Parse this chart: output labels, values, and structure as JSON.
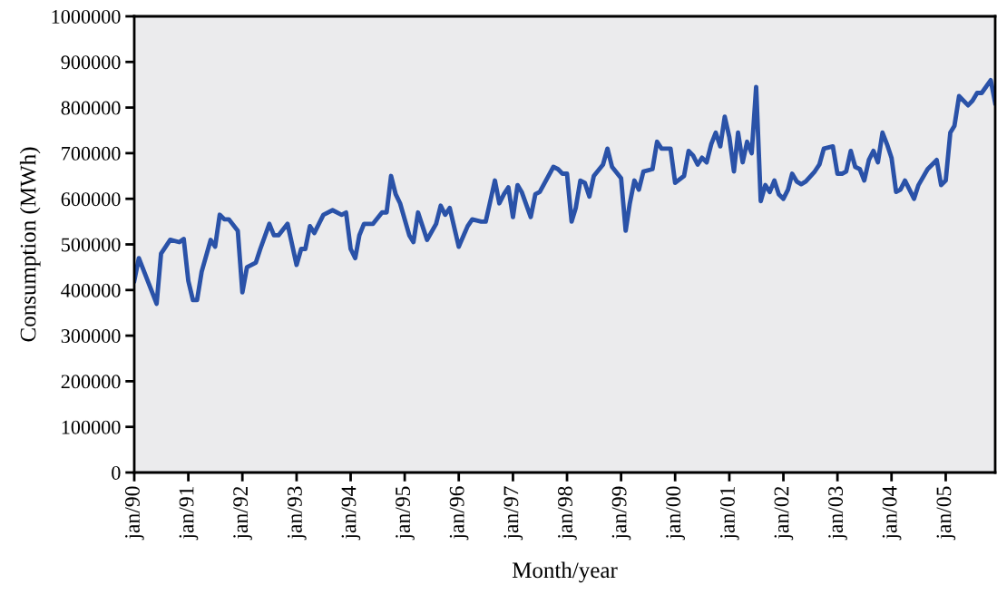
{
  "chart_data": {
    "type": "line",
    "xlabel": "Month/year",
    "ylabel": "Consumption (MWh)",
    "x": [
      "1990-01",
      "1990-02",
      "1990-06",
      "1990-07",
      "1990-09",
      "1990-11",
      "1990-12",
      "1991-01",
      "1991-02",
      "1991-03",
      "1991-04",
      "1991-06",
      "1991-07",
      "1991-08",
      "1991-09",
      "1991-10",
      "1991-12",
      "1992-01",
      "1992-02",
      "1992-04",
      "1992-05",
      "1992-07",
      "1992-08",
      "1992-09",
      "1992-11",
      "1993-01",
      "1993-02",
      "1993-03",
      "1993-04",
      "1993-05",
      "1993-07",
      "1993-09",
      "1993-11",
      "1993-12",
      "1994-01",
      "1994-02",
      "1994-03",
      "1994-04",
      "1994-06",
      "1994-08",
      "1994-09",
      "1994-10",
      "1994-11",
      "1994-12",
      "1995-02",
      "1995-03",
      "1995-04",
      "1995-06",
      "1995-08",
      "1995-09",
      "1995-10",
      "1995-11",
      "1996-01",
      "1996-03",
      "1996-04",
      "1996-06",
      "1996-07",
      "1996-08",
      "1996-09",
      "1996-10",
      "1996-11",
      "1996-12",
      "1997-01",
      "1997-02",
      "1997-03",
      "1997-05",
      "1997-06",
      "1997-07",
      "1997-10",
      "1997-11",
      "1997-12",
      "1998-01",
      "1998-02",
      "1998-03",
      "1998-04",
      "1998-05",
      "1998-06",
      "1998-07",
      "1998-09",
      "1998-10",
      "1998-11",
      "1999-01",
      "1999-02",
      "1999-03",
      "1999-04",
      "1999-05",
      "1999-06",
      "1999-08",
      "1999-09",
      "1999-10",
      "1999-12",
      "2000-01",
      "2000-03",
      "2000-04",
      "2000-05",
      "2000-06",
      "2000-07",
      "2000-08",
      "2000-09",
      "2000-10",
      "2000-11",
      "2000-12",
      "2001-01",
      "2001-02",
      "2001-03",
      "2001-04",
      "2001-05",
      "2001-06",
      "2001-07",
      "2001-08",
      "2001-09",
      "2001-10",
      "2001-11",
      "2001-12",
      "2002-01",
      "2002-02",
      "2002-03",
      "2002-04",
      "2002-05",
      "2002-06",
      "2002-08",
      "2002-09",
      "2002-10",
      "2002-12",
      "2003-01",
      "2003-02",
      "2003-03",
      "2003-04",
      "2003-05",
      "2003-06",
      "2003-07",
      "2003-08",
      "2003-09",
      "2003-10",
      "2003-11",
      "2003-12",
      "2004-01",
      "2004-02",
      "2004-03",
      "2004-04",
      "2004-06",
      "2004-07",
      "2004-09",
      "2004-11",
      "2004-12",
      "2005-01",
      "2005-02",
      "2005-03",
      "2005-04",
      "2005-06",
      "2005-07",
      "2005-08",
      "2005-09",
      "2005-11",
      "2005-12"
    ],
    "series": [
      {
        "color": "#2a52a8",
        "values": [
          420000,
          470000,
          370000,
          480000,
          510000,
          505000,
          512000,
          420000,
          378000,
          378000,
          440000,
          510000,
          495000,
          565000,
          555000,
          555000,
          530000,
          395000,
          450000,
          460000,
          490000,
          545000,
          520000,
          520000,
          545000,
          455000,
          490000,
          490000,
          540000,
          525000,
          565000,
          575000,
          565000,
          570000,
          490000,
          470000,
          520000,
          545000,
          545000,
          570000,
          570000,
          650000,
          610000,
          590000,
          520000,
          505000,
          570000,
          510000,
          545000,
          585000,
          565000,
          580000,
          495000,
          540000,
          555000,
          550000,
          550000,
          595000,
          640000,
          590000,
          610000,
          625000,
          560000,
          630000,
          615000,
          560000,
          610000,
          615000,
          670000,
          665000,
          655000,
          655000,
          550000,
          580000,
          640000,
          635000,
          605000,
          650000,
          675000,
          710000,
          670000,
          645000,
          530000,
          590000,
          640000,
          620000,
          660000,
          665000,
          725000,
          710000,
          710000,
          635000,
          650000,
          705000,
          695000,
          675000,
          690000,
          680000,
          720000,
          745000,
          715000,
          780000,
          735000,
          660000,
          745000,
          680000,
          725000,
          700000,
          845000,
          595000,
          630000,
          615000,
          640000,
          610000,
          600000,
          620000,
          655000,
          638000,
          632000,
          638000,
          660000,
          675000,
          710000,
          715000,
          655000,
          655000,
          660000,
          705000,
          670000,
          665000,
          640000,
          685000,
          705000,
          680000,
          745000,
          720000,
          690000,
          615000,
          620000,
          640000,
          600000,
          630000,
          665000,
          685000,
          630000,
          640000,
          745000,
          760000,
          825000,
          805000,
          815000,
          832000,
          832000,
          860000,
          810000
        ]
      }
    ],
    "xlim": [
      "1990-01",
      "2005-12"
    ],
    "xticks": [
      {
        "value": "1990-01",
        "label": "jan/90"
      },
      {
        "value": "1991-01",
        "label": "jan/91"
      },
      {
        "value": "1992-01",
        "label": "jan/92"
      },
      {
        "value": "1993-01",
        "label": "jan/93"
      },
      {
        "value": "1994-01",
        "label": "jan/94"
      },
      {
        "value": "1995-01",
        "label": "jan/95"
      },
      {
        "value": "1996-01",
        "label": "jan/96"
      },
      {
        "value": "1997-01",
        "label": "jan/97"
      },
      {
        "value": "1998-01",
        "label": "jan/98"
      },
      {
        "value": "1999-01",
        "label": "jan/99"
      },
      {
        "value": "2000-01",
        "label": "jan/00"
      },
      {
        "value": "2001-01",
        "label": "jan/01"
      },
      {
        "value": "2002-01",
        "label": "jan/02"
      },
      {
        "value": "2003-01",
        "label": "jan/03"
      },
      {
        "value": "2004-01",
        "label": "jan/04"
      },
      {
        "value": "2005-01",
        "label": "jan/05"
      }
    ],
    "ylim": [
      0,
      1000000
    ],
    "yticks": [
      0,
      100000,
      200000,
      300000,
      400000,
      500000,
      600000,
      700000,
      800000,
      900000,
      1000000
    ],
    "line_style": "solid"
  }
}
